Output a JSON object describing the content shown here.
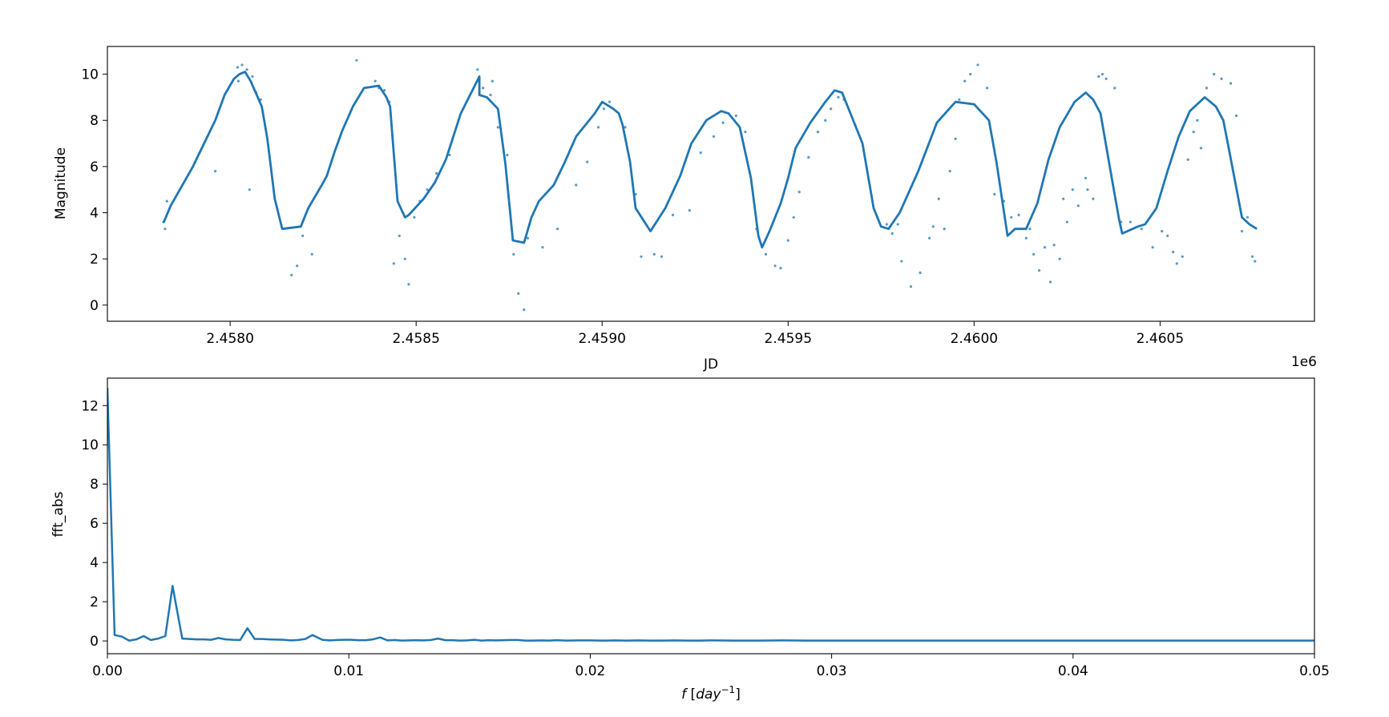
{
  "chart_data": [
    {
      "type": "line",
      "xlabel": "JD",
      "ylabel": "Magnitude",
      "x_offset_label": "1e6",
      "xlim": [
        2457670,
        2460915
      ],
      "ylim": [
        -0.7,
        11.2
      ],
      "xticks": [
        2458000,
        2458500,
        2459000,
        2459500,
        2460000,
        2460500
      ],
      "xtick_labels": [
        "2.4580",
        "2.4585",
        "2.4590",
        "2.4595",
        "2.4600",
        "2.4605"
      ],
      "yticks": [
        0,
        2,
        4,
        6,
        8,
        10
      ],
      "ytick_labels": [
        "0",
        "2",
        "4",
        "6",
        "8",
        "10"
      ],
      "grid": false,
      "color": "#1f77b4",
      "series": [
        {
          "style": "line",
          "x": [
            2457818,
            2457822,
            2457840,
            2457900,
            2457945,
            2457960,
            2457985,
            2458010,
            2458025,
            2458040,
            2458055,
            2458085,
            2458100,
            2458120,
            2458140,
            2458190,
            2458210,
            2458250,
            2458260,
            2458280,
            2458300,
            2458330,
            2458360,
            2458400,
            2458420,
            2458430,
            2458450,
            2458470,
            2458480,
            2458520,
            2458550,
            2458580,
            2458600,
            2458620,
            2458670,
            2458670,
            2458690,
            2458720,
            2458740,
            2458760,
            2458790,
            2458810,
            2458830,
            2458870,
            2458900,
            2458930,
            2458980,
            2459000,
            2459010,
            2459030,
            2459045,
            2459055,
            2459075,
            2459090,
            2459130,
            2459170,
            2459210,
            2459240,
            2459280,
            2459320,
            2459340,
            2459370,
            2459400,
            2459420,
            2459430,
            2459450,
            2459480,
            2459500,
            2459520,
            2459560,
            2459600,
            2459625,
            2459645,
            2459660,
            2459700,
            2459730,
            2459750,
            2459770,
            2459800,
            2459850,
            2459900,
            2459950,
            2460000,
            2460040,
            2460060,
            2460090,
            2460110,
            2460140,
            2460170,
            2460200,
            2460230,
            2460270,
            2460300,
            2460320,
            2460340,
            2460370,
            2460390,
            2460398,
            2460440,
            2460460,
            2460490,
            2460520,
            2460550,
            2460580,
            2460620,
            2460650,
            2460670,
            2460700,
            2460720,
            2460740,
            2460760
          ],
          "y": [
            3.6,
            3.6,
            4.3,
            6.0,
            7.5,
            8.0,
            9.1,
            9.8,
            10.0,
            10.1,
            9.7,
            8.6,
            7.2,
            4.6,
            3.3,
            3.4,
            4.2,
            5.3,
            5.6,
            6.6,
            7.5,
            8.6,
            9.4,
            9.5,
            9.0,
            8.6,
            4.5,
            3.8,
            3.9,
            4.6,
            5.3,
            6.3,
            7.3,
            8.3,
            9.9,
            9.1,
            9.0,
            8.5,
            6.1,
            2.8,
            2.7,
            3.8,
            4.5,
            5.2,
            6.2,
            7.3,
            8.3,
            8.8,
            8.7,
            8.5,
            8.3,
            7.8,
            6.2,
            4.2,
            3.2,
            4.2,
            5.6,
            7.0,
            8.0,
            8.4,
            8.3,
            7.7,
            5.5,
            3.0,
            2.5,
            3.2,
            4.4,
            5.5,
            6.8,
            7.9,
            8.8,
            9.3,
            9.2,
            8.6,
            7.0,
            4.2,
            3.4,
            3.3,
            4.0,
            5.8,
            7.9,
            8.8,
            8.7,
            8.0,
            6.2,
            3.0,
            3.3,
            3.3,
            4.4,
            6.3,
            7.7,
            8.8,
            9.2,
            8.9,
            8.3,
            5.5,
            3.7,
            3.1,
            3.4,
            3.5,
            4.2,
            5.8,
            7.3,
            8.4,
            9.0,
            8.6,
            8.0,
            5.5,
            3.8,
            3.5,
            3.3
          ]
        },
        {
          "style": "scatter",
          "x": [
            2457825,
            2457830,
            2457960,
            2458020,
            2458032,
            2458045,
            2458060,
            2458022,
            2458070,
            2458082,
            2458052,
            2458195,
            2458165,
            2458180,
            2458220,
            2458340,
            2458390,
            2458415,
            2458400,
            2458428,
            2458440,
            2458455,
            2458470,
            2458480,
            2458495,
            2458510,
            2458530,
            2458555,
            2458590,
            2458665,
            2458668,
            2458680,
            2458700,
            2458705,
            2458720,
            2458745,
            2458762,
            2458775,
            2458790,
            2458800,
            2458840,
            2458880,
            2458930,
            2458960,
            2458990,
            2459005,
            2459020,
            2459062,
            2459090,
            2459105,
            2459140,
            2459160,
            2459190,
            2459235,
            2459265,
            2459300,
            2459325,
            2459360,
            2459385,
            2459415,
            2459432,
            2459440,
            2459465,
            2459480,
            2459500,
            2459515,
            2459530,
            2459555,
            2459580,
            2459600,
            2459615,
            2459635,
            2459650,
            2459680,
            2459740,
            2459765,
            2459780,
            2459795,
            2459805,
            2459830,
            2459855,
            2459880,
            2459890,
            2459905,
            2459920,
            2459935,
            2459950,
            2459960,
            2459975,
            2459990,
            2460010,
            2460035,
            2460055,
            2460080,
            2460100,
            2460120,
            2460140,
            2460150,
            2460160,
            2460175,
            2460190,
            2460205,
            2460215,
            2460230,
            2460240,
            2460250,
            2460265,
            2460280,
            2460300,
            2460305,
            2460320,
            2460335,
            2460345,
            2460355,
            2460378,
            2460395,
            2460420,
            2460450,
            2460480,
            2460505,
            2460520,
            2460535,
            2460545,
            2460560,
            2460575,
            2460590,
            2460600,
            2460610,
            2460625,
            2460645,
            2460665,
            2460690,
            2460705,
            2460720,
            2460735,
            2460748,
            2460755
          ],
          "y": [
            3.3,
            4.5,
            5.8,
            10.3,
            10.4,
            10.2,
            9.9,
            9.7,
            9.2,
            8.9,
            5.0,
            3.0,
            1.3,
            1.7,
            2.2,
            10.6,
            9.7,
            9.3,
            9.4,
            8.8,
            1.8,
            3.0,
            2.0,
            0.9,
            3.8,
            4.5,
            5.0,
            5.7,
            6.5,
            10.2,
            9.8,
            9.4,
            9.1,
            9.7,
            7.7,
            6.5,
            2.2,
            0.5,
            -0.2,
            2.9,
            2.5,
            3.3,
            5.2,
            6.2,
            7.7,
            8.5,
            8.8,
            7.7,
            4.8,
            2.1,
            2.2,
            2.1,
            3.9,
            4.1,
            6.6,
            7.3,
            7.9,
            8.2,
            7.5,
            3.3,
            2.6,
            2.2,
            1.7,
            1.6,
            2.8,
            3.8,
            4.9,
            6.4,
            7.5,
            8.0,
            8.5,
            9.0,
            8.9,
            7.8,
            3.8,
            3.5,
            3.1,
            3.5,
            1.9,
            0.8,
            1.4,
            2.9,
            3.4,
            4.6,
            3.3,
            5.8,
            7.2,
            8.9,
            9.7,
            10.0,
            10.4,
            9.4,
            4.8,
            4.5,
            3.8,
            3.9,
            2.9,
            3.3,
            2.2,
            1.5,
            2.5,
            1.0,
            2.6,
            2.0,
            4.6,
            3.6,
            5.0,
            4.3,
            5.5,
            5.0,
            4.6,
            9.9,
            10.0,
            9.8,
            9.4,
            3.6,
            3.6,
            3.3,
            2.5,
            3.2,
            3.0,
            2.3,
            1.8,
            2.1,
            6.3,
            7.5,
            8.0,
            6.8,
            9.4,
            10.0,
            9.8,
            9.6,
            8.2,
            3.2,
            3.8,
            2.1,
            1.9
          ]
        }
      ]
    },
    {
      "type": "line",
      "xlabel": "f [day^-1]",
      "ylabel": "fft_abs",
      "xlim": [
        0,
        0.05
      ],
      "ylim": [
        -0.65,
        13.4
      ],
      "xticks": [
        0,
        0.01,
        0.02,
        0.03,
        0.04,
        0.05
      ],
      "xtick_labels": [
        "0.00",
        "0.01",
        "0.02",
        "0.03",
        "0.04",
        "0.05"
      ],
      "yticks": [
        0,
        2,
        4,
        6,
        8,
        10,
        12
      ],
      "ytick_labels": [
        "0",
        "2",
        "4",
        "6",
        "8",
        "10",
        "12"
      ],
      "grid": false,
      "color": "#1f77b4",
      "x": [
        0,
        0.0003,
        0.0006,
        0.0009,
        0.0012,
        0.0015,
        0.0018,
        0.0021,
        0.0024,
        0.0027,
        0.0031,
        0.0034,
        0.0037,
        0.004,
        0.0043,
        0.0046,
        0.0049,
        0.0052,
        0.0055,
        0.0058,
        0.0061,
        0.0064,
        0.0067,
        0.007,
        0.0073,
        0.0076,
        0.0079,
        0.0082,
        0.0085,
        0.0089,
        0.0092,
        0.0095,
        0.0098,
        0.0101,
        0.0104,
        0.0107,
        0.011,
        0.0113,
        0.0116,
        0.0119,
        0.0122,
        0.0125,
        0.0128,
        0.0131,
        0.0134,
        0.0137,
        0.014,
        0.0143,
        0.0146,
        0.0149,
        0.0152,
        0.0155,
        0.0158,
        0.0161,
        0.0164,
        0.0167,
        0.017,
        0.0173,
        0.0176,
        0.018,
        0.0183,
        0.0186,
        0.019,
        0.0195,
        0.02,
        0.0205,
        0.021,
        0.0215,
        0.022,
        0.0225,
        0.023,
        0.0235,
        0.024,
        0.0245,
        0.025,
        0.026,
        0.027,
        0.028,
        0.029,
        0.03,
        0.032,
        0.034,
        0.036,
        0.038,
        0.04,
        0.042,
        0.044,
        0.046,
        0.048,
        0.05
      ],
      "y": [
        12.9,
        0.3,
        0.22,
        0.02,
        0.08,
        0.25,
        0.05,
        0.12,
        0.25,
        2.8,
        0.12,
        0.1,
        0.08,
        0.08,
        0.06,
        0.15,
        0.08,
        0.06,
        0.05,
        0.65,
        0.1,
        0.1,
        0.08,
        0.07,
        0.06,
        0.03,
        0.05,
        0.1,
        0.3,
        0.06,
        0.03,
        0.05,
        0.06,
        0.06,
        0.04,
        0.04,
        0.08,
        0.18,
        0.03,
        0.05,
        0.02,
        0.03,
        0.04,
        0.03,
        0.05,
        0.12,
        0.04,
        0.04,
        0.02,
        0.03,
        0.06,
        0.02,
        0.04,
        0.03,
        0.04,
        0.05,
        0.05,
        0.02,
        0.02,
        0.03,
        0.02,
        0.04,
        0.02,
        0.03,
        0.03,
        0.02,
        0.03,
        0.02,
        0.03,
        0.02,
        0.02,
        0.03,
        0.02,
        0.02,
        0.03,
        0.02,
        0.02,
        0.03,
        0.02,
        0.02,
        0.02,
        0.02,
        0.02,
        0.02,
        0.02,
        0.02,
        0.02,
        0.02,
        0.02,
        0.02
      ]
    }
  ]
}
